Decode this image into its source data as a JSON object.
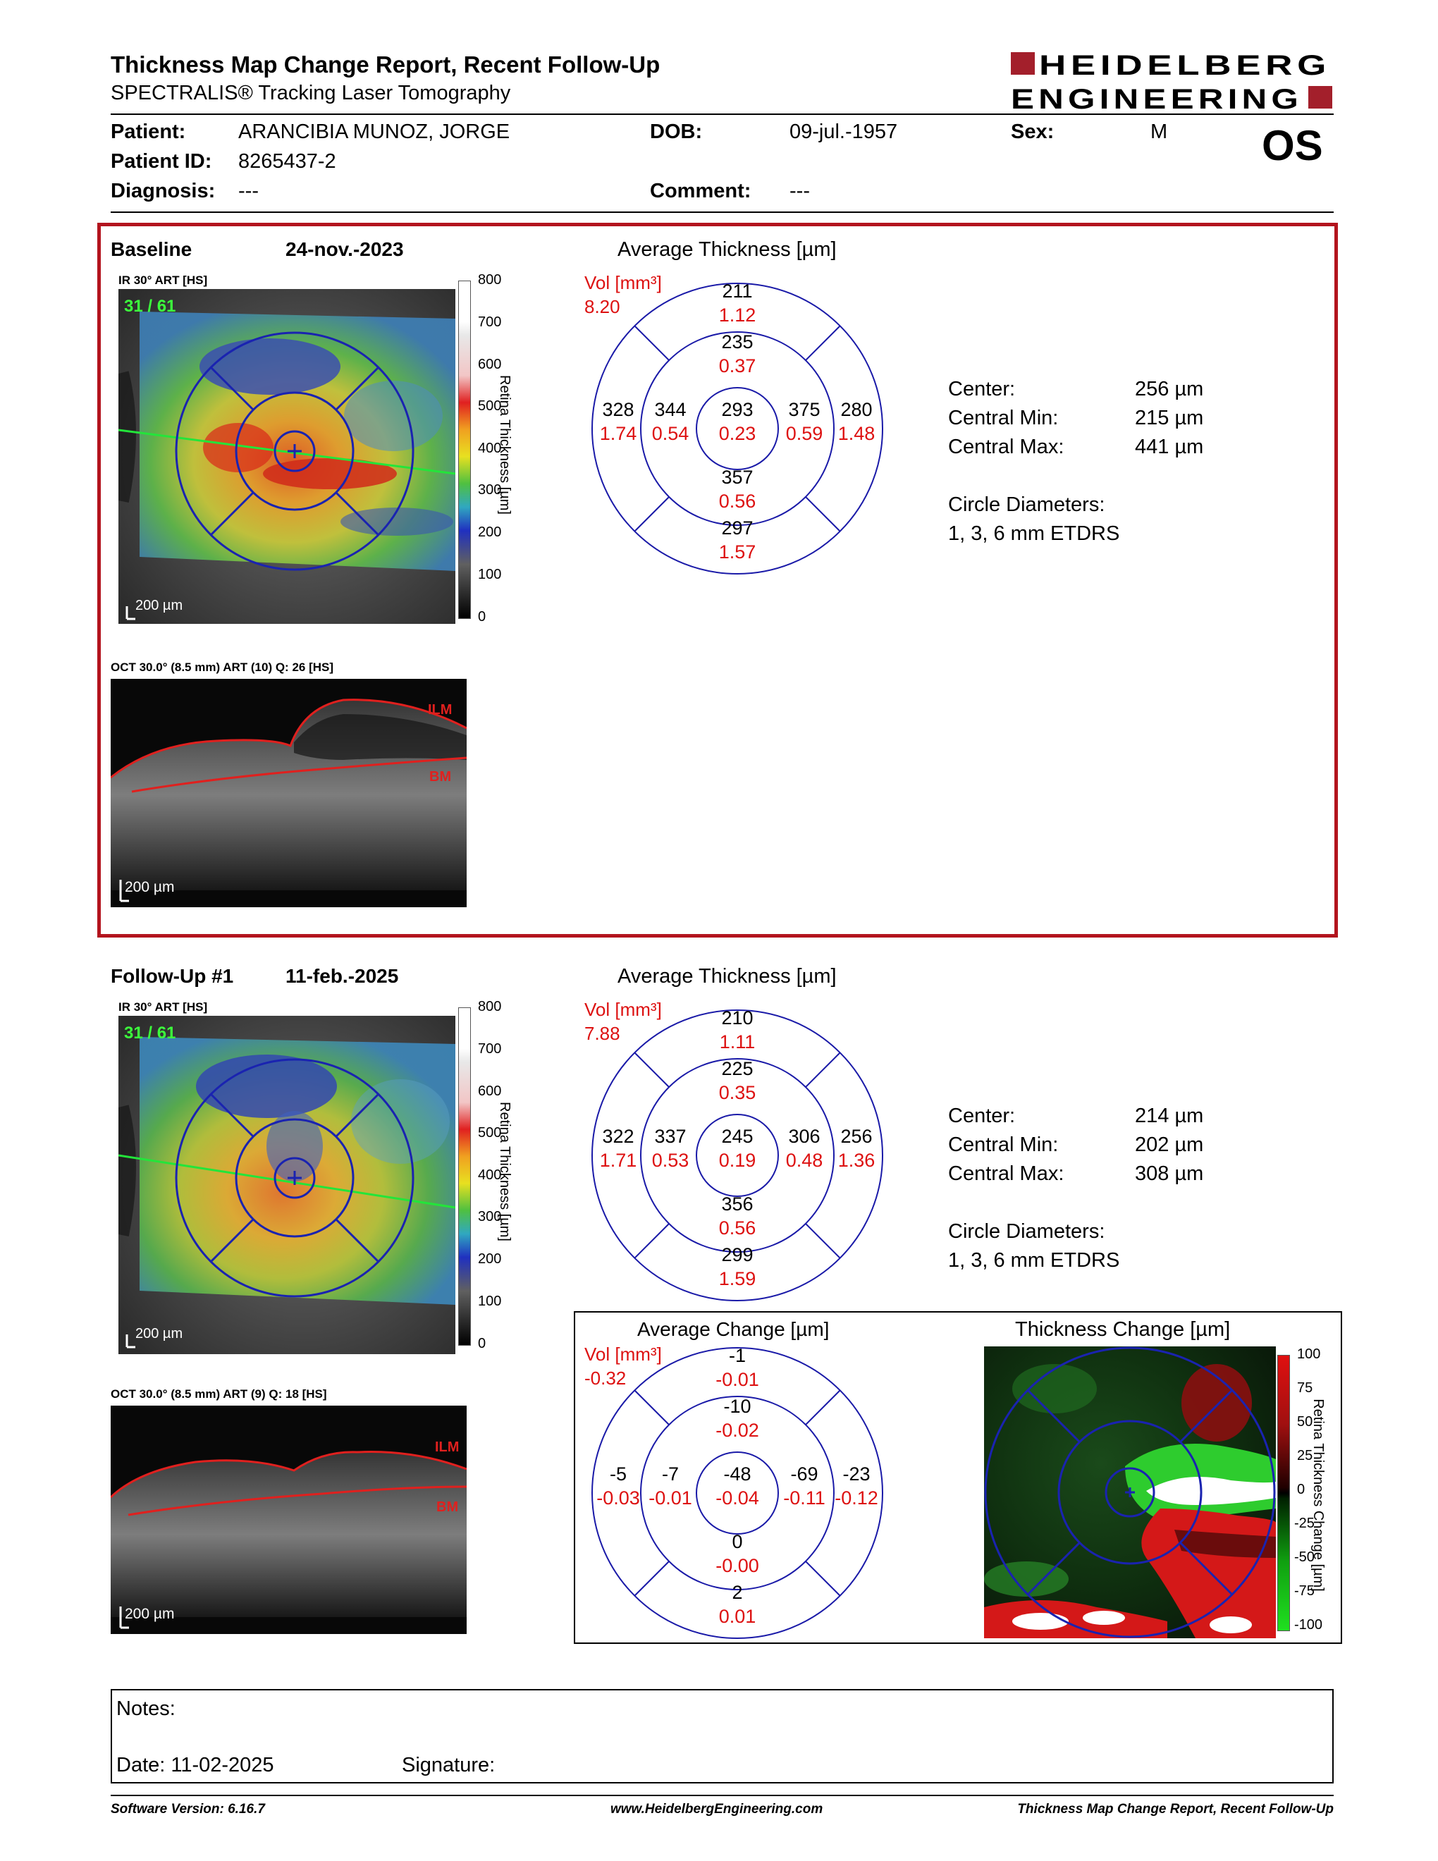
{
  "header": {
    "title": "Thickness Map Change Report, Recent Follow-Up",
    "subtitle": "SPECTRALIS® Tracking Laser Tomography",
    "logo_line1": "HEIDELBERG",
    "logo_line2": "ENGINEERING",
    "brand_color": "#a31f2b"
  },
  "patient": {
    "patient_label": "Patient:",
    "patient_value": "ARANCIBIA MUNOZ, JORGE",
    "dob_label": "DOB:",
    "dob_value": "09-jul.-1957",
    "sex_label": "Sex:",
    "sex_value": "M",
    "id_label": "Patient ID:",
    "id_value": "8265437-2",
    "eye": "OS",
    "diagnosis_label": "Diagnosis:",
    "diagnosis_value": "---",
    "comment_label": "Comment:",
    "comment_value": "---"
  },
  "baseline": {
    "label": "Baseline",
    "date": "24-nov.-2023",
    "ir_label": "IR 30° ART [HS]",
    "frame": "31 / 61",
    "scale": "200 µm",
    "oct_label": "OCT 30.0° (8.5 mm) ART (10) Q: 26 [HS]",
    "oct_scale": "200 µm",
    "ilm": "ILM",
    "bm": "BM",
    "avg_title": "Average Thickness [µm]",
    "vol_label": "Vol [mm³]",
    "vol_total": "8.20",
    "etdrs": {
      "center": {
        "t": "293",
        "v": "0.23"
      },
      "inner_sup": {
        "t": "235",
        "v": "0.37"
      },
      "inner_inf": {
        "t": "357",
        "v": "0.56"
      },
      "inner_nas": {
        "t": "344",
        "v": "0.54"
      },
      "inner_temp": {
        "t": "375",
        "v": "0.59"
      },
      "outer_sup": {
        "t": "211",
        "v": "1.12"
      },
      "outer_inf": {
        "t": "297",
        "v": "1.57"
      },
      "outer_nas": {
        "t": "328",
        "v": "1.74"
      },
      "outer_temp": {
        "t": "280",
        "v": "1.48"
      }
    },
    "stats": {
      "center_label": "Center:",
      "center_value": "256 µm",
      "min_label": "Central Min:",
      "min_value": "215 µm",
      "max_label": "Central Max:",
      "max_value": "441 µm",
      "diam_label": "Circle Diameters:",
      "diam_value": "1, 3, 6 mm ETDRS"
    }
  },
  "followup": {
    "label": "Follow-Up #1",
    "date": "11-feb.-2025",
    "ir_label": "IR 30° ART [HS]",
    "frame": "31 / 61",
    "scale": "200 µm",
    "oct_label": "OCT 30.0° (8.5 mm) ART (9) Q: 18 [HS]",
    "oct_scale": "200 µm",
    "ilm": "ILM",
    "bm": "BM",
    "avg_title": "Average Thickness [µm]",
    "vol_label": "Vol [mm³]",
    "vol_total": "7.88",
    "etdrs": {
      "center": {
        "t": "245",
        "v": "0.19"
      },
      "inner_sup": {
        "t": "225",
        "v": "0.35"
      },
      "inner_inf": {
        "t": "356",
        "v": "0.56"
      },
      "inner_nas": {
        "t": "337",
        "v": "0.53"
      },
      "inner_temp": {
        "t": "306",
        "v": "0.48"
      },
      "outer_sup": {
        "t": "210",
        "v": "1.11"
      },
      "outer_inf": {
        "t": "299",
        "v": "1.59"
      },
      "outer_nas": {
        "t": "322",
        "v": "1.71"
      },
      "outer_temp": {
        "t": "256",
        "v": "1.36"
      }
    },
    "stats": {
      "center_label": "Center:",
      "center_value": "214 µm",
      "min_label": "Central Min:",
      "min_value": "202 µm",
      "max_label": "Central Max:",
      "max_value": "308 µm",
      "diam_label": "Circle Diameters:",
      "diam_value": "1, 3, 6 mm ETDRS"
    }
  },
  "thickness_scale": {
    "ticks": [
      "800",
      "700",
      "600",
      "500",
      "400",
      "300",
      "200",
      "100",
      "0"
    ],
    "axis_label": "Retina Thickness [µm]"
  },
  "change": {
    "avg_title": "Average Change [µm]",
    "vol_label": "Vol [mm³]",
    "vol_total": "-0.32",
    "etdrs": {
      "center": {
        "t": "-48",
        "v": "-0.04"
      },
      "inner_sup": {
        "t": "-10",
        "v": "-0.02"
      },
      "inner_inf": {
        "t": "0",
        "v": "-0.00"
      },
      "inner_nas": {
        "t": "-7",
        "v": "-0.01"
      },
      "inner_temp": {
        "t": "-69",
        "v": "-0.11"
      },
      "outer_sup": {
        "t": "-1",
        "v": "-0.01"
      },
      "outer_inf": {
        "t": "2",
        "v": "0.01"
      },
      "outer_nas": {
        "t": "-5",
        "v": "-0.03"
      },
      "outer_temp": {
        "t": "-23",
        "v": "-0.12"
      }
    },
    "map_title": "Thickness Change [µm]",
    "ticks": [
      "100",
      "75",
      "50",
      "25",
      "0",
      "-25",
      "-50",
      "-75",
      "-100"
    ],
    "axis_label": "Retina Thickness Change [µm]"
  },
  "notes": {
    "notes_label": "Notes:",
    "date_label": "Date: 11-02-2025",
    "signature_label": "Signature:"
  },
  "footer": {
    "software": "Software Version: 6.16.7",
    "website": "www.HeidelbergEngineering.com",
    "report": "Thickness Map Change Report, Recent Follow-Up"
  }
}
